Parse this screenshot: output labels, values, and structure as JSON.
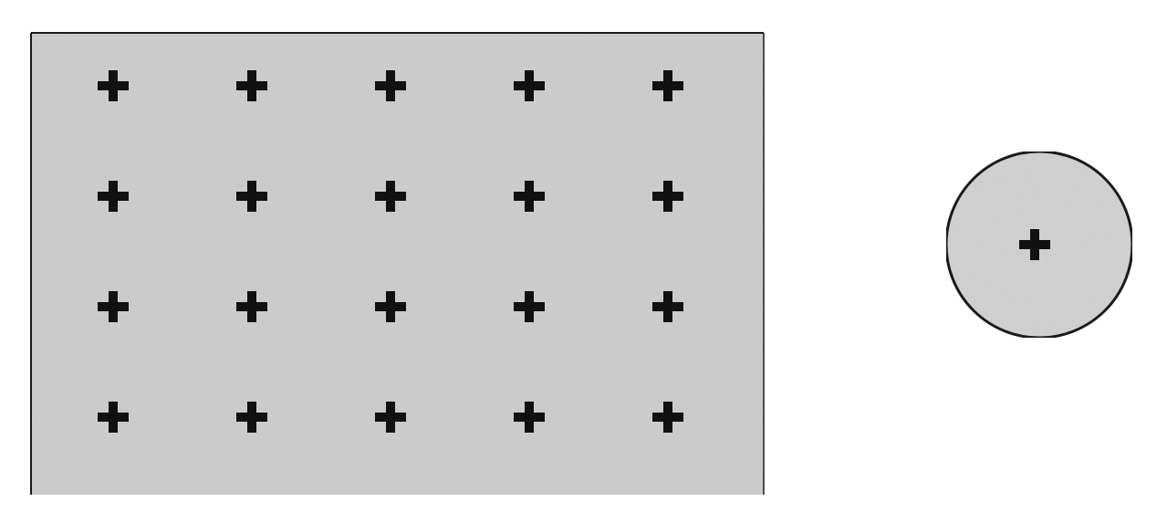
{
  "diagram": {
    "grid_panel": {
      "rows": 4,
      "columns": 5,
      "marker_icon": "plus-icon",
      "fill_color": "#cfcfcf",
      "border_color": "#1a1a1a"
    },
    "single_circle": {
      "marker_count": 1,
      "marker_icon": "plus-icon",
      "fill_color": "#d3d3d3",
      "border_color": "#1a1a1a"
    },
    "marker_color": "#111111"
  }
}
